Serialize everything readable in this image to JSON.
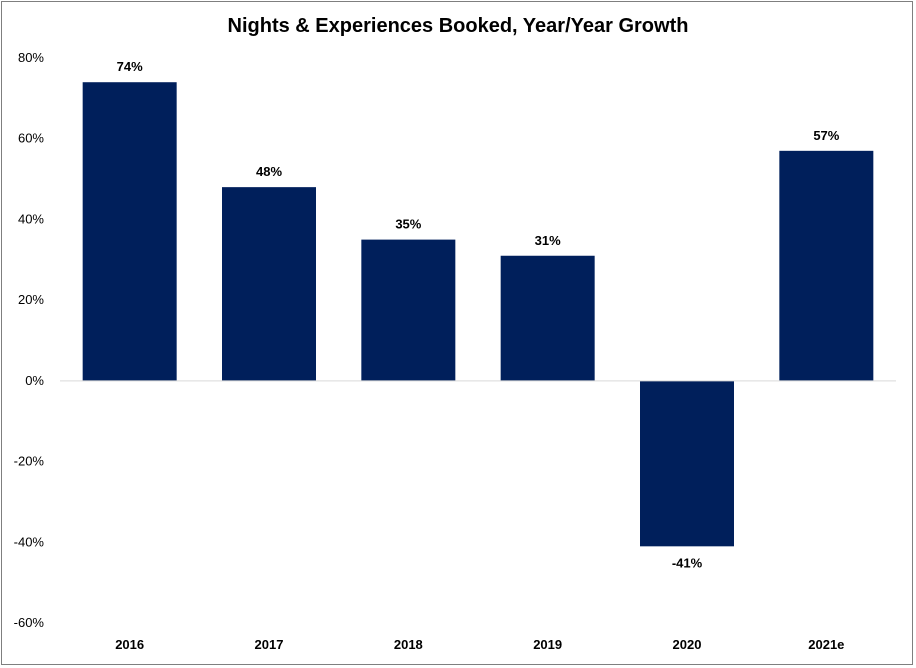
{
  "chart_data": {
    "type": "bar",
    "title": "Nights & Experiences Booked, Year/Year Growth",
    "xlabel": "",
    "ylabel": "",
    "categories": [
      "2016",
      "2017",
      "2018",
      "2019",
      "2020",
      "2021e"
    ],
    "values": [
      74,
      48,
      35,
      31,
      -41,
      57
    ],
    "data_labels": [
      "74%",
      "48%",
      "35%",
      "31%",
      "-41%",
      "57%"
    ],
    "ylim": [
      -60,
      80
    ],
    "yticks": [
      80,
      60,
      40,
      20,
      0,
      -20,
      -40,
      -60
    ],
    "ytick_labels": [
      "80%",
      "60%",
      "40%",
      "20%",
      "0%",
      "-20%",
      "-40%",
      "-60%"
    ],
    "grid": false,
    "legend": "none",
    "bar_color": "#001f5b",
    "axis_color": "#d9d9d9"
  }
}
